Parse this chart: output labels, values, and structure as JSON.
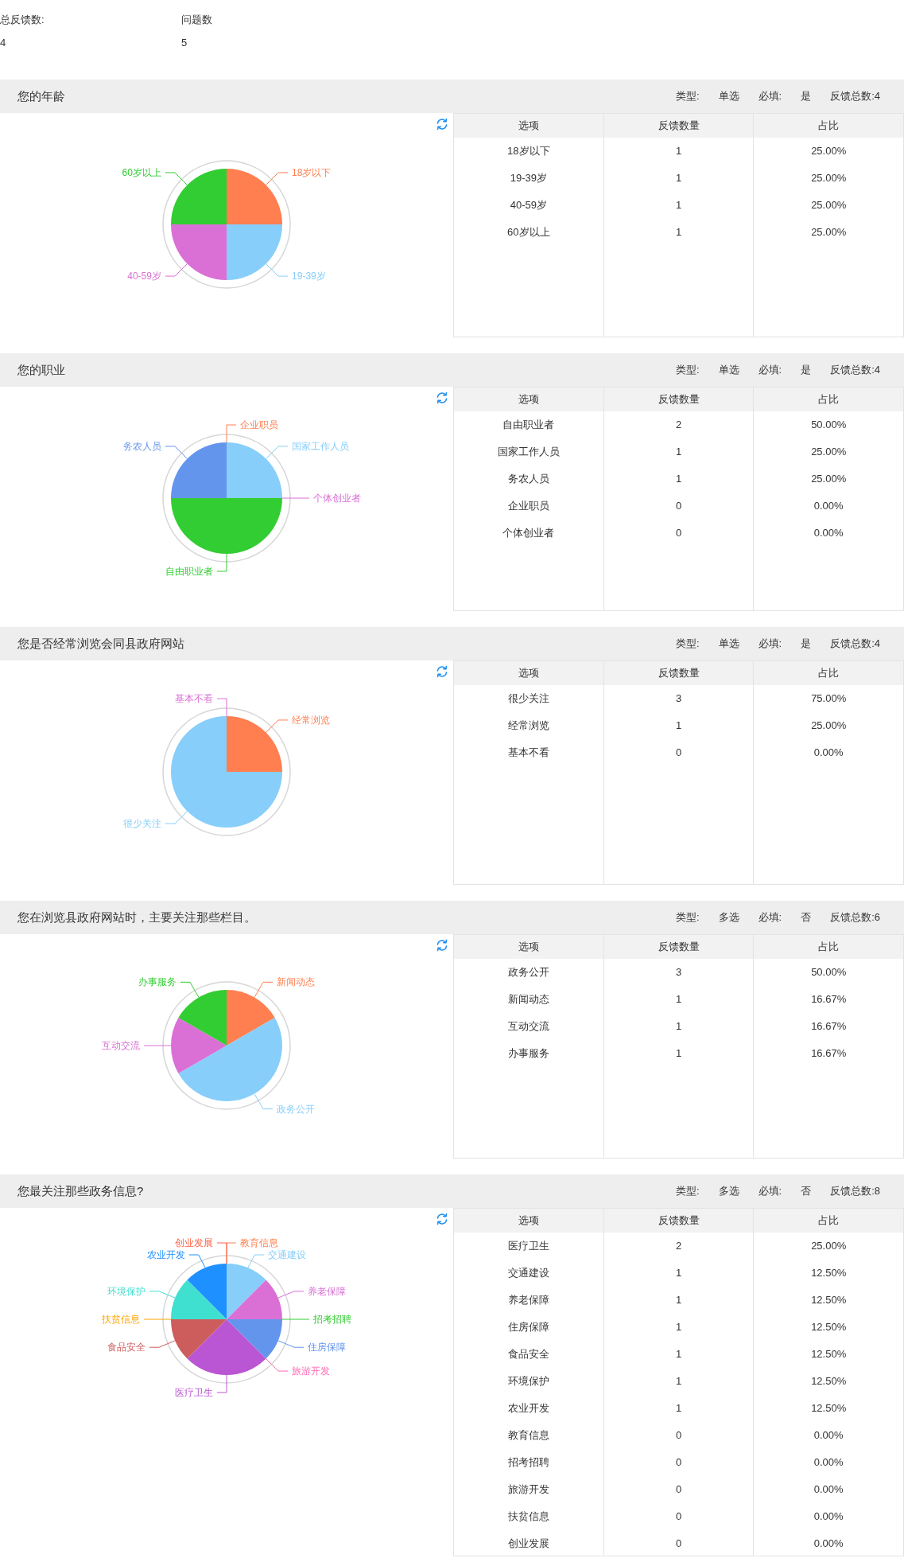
{
  "chart_data": [
    {
      "type": "pie",
      "title": "您的年龄",
      "categories": [
        "18岁以下",
        "19-39岁",
        "40-59岁",
        "60岁以上"
      ],
      "values": [
        25,
        25,
        25,
        25
      ],
      "colors": [
        "#ff7f50",
        "#87cefa",
        "#da70d6",
        "#32cd32"
      ],
      "annotations": [
        "总反馈数:",
        "4",
        "问题数",
        "5",
        "类型:",
        "单选",
        "必填:",
        "是",
        "反馈总数:4"
      ]
    },
    {
      "type": "other",
      "categories": [
        "18岁以下",
        "19-39岁",
        "40-59岁",
        "60岁以上"
      ],
      "series": [
        {
          "name": "反馈数量",
          "values": [
            1,
            1,
            1,
            1
          ]
        },
        {
          "name": "占比",
          "values": [
            25,
            25,
            25,
            25
          ],
          "value_labels": [
            "25.00%",
            "25.00%",
            "25.00%",
            "25.00%"
          ]
        }
      ],
      "data_labels": true,
      "annotations": [
        "选项"
      ]
    },
    {
      "type": "pie",
      "title": "您的职业",
      "categories": [
        "企业职员",
        "国家工作人员",
        "个体创业者",
        "自由职业者",
        "务农人员"
      ],
      "values": [
        0,
        25,
        0,
        50,
        25
      ],
      "colors": [
        "#ff7f50",
        "#87cefa",
        "#da70d6",
        "#32cd32",
        "#6495ed"
      ],
      "annotations": [
        "类型:",
        "单选",
        "必填:",
        "是",
        "反馈总数:4"
      ]
    },
    {
      "type": "other",
      "categories": [
        "自由职业者",
        "国家工作人员",
        "务农人员",
        "企业职员",
        "个体创业者"
      ],
      "series": [
        {
          "name": "反馈数量",
          "values": [
            2,
            1,
            1,
            0,
            0
          ]
        },
        {
          "name": "占比",
          "values": [
            50,
            25,
            25,
            0,
            0
          ],
          "value_labels": [
            "50.00%",
            "25.00%",
            "25.00%",
            "0.00%",
            "0.00%"
          ]
        }
      ],
      "data_labels": true,
      "annotations": [
        "选项"
      ]
    },
    {
      "type": "pie",
      "title": "您是否经常浏览会同县政府网站",
      "categories": [
        "经常浏览",
        "很少关注",
        "基本不看"
      ],
      "values": [
        25,
        75,
        0
      ],
      "colors": [
        "#ff7f50",
        "#87cefa",
        "#da70d6"
      ],
      "annotations": [
        "类型:",
        "单选",
        "必填:",
        "是",
        "反馈总数:4"
      ]
    },
    {
      "type": "other",
      "categories": [
        "很少关注",
        "经常浏览",
        "基本不看"
      ],
      "series": [
        {
          "name": "反馈数量",
          "values": [
            3,
            1,
            0
          ]
        },
        {
          "name": "占比",
          "values": [
            75,
            25,
            0
          ],
          "value_labels": [
            "75.00%",
            "25.00%",
            "0.00%"
          ]
        }
      ],
      "data_labels": true,
      "annotations": [
        "选项"
      ]
    },
    {
      "type": "pie",
      "title": "您在浏览县政府网站时，主要关注那些栏目。",
      "categories": [
        "新闻动态",
        "政务公开",
        "互动交流",
        "办事服务"
      ],
      "values": [
        16.67,
        50,
        16.67,
        16.67
      ],
      "colors": [
        "#ff7f50",
        "#87cefa",
        "#da70d6",
        "#32cd32"
      ],
      "annotations": [
        "类型:",
        "多选",
        "必填:",
        "否",
        "反馈总数:6"
      ]
    },
    {
      "type": "other",
      "categories": [
        "政务公开",
        "新闻动态",
        "互动交流",
        "办事服务"
      ],
      "series": [
        {
          "name": "反馈数量",
          "values": [
            3,
            1,
            1,
            1
          ]
        },
        {
          "name": "占比",
          "values": [
            50,
            16.67,
            16.67,
            16.67
          ],
          "value_labels": [
            "50.00%",
            "16.67%",
            "16.67%",
            "16.67%"
          ]
        }
      ],
      "data_labels": true,
      "annotations": [
        "选项"
      ]
    },
    {
      "type": "pie",
      "title": "您最关注那些政务信息?",
      "categories": [
        "教育信息",
        "交通建设",
        "养老保障",
        "招考招聘",
        "住房保障",
        "旅游开发",
        "医疗卫生",
        "食品安全",
        "扶贫信息",
        "环境保护",
        "农业开发",
        "创业发展"
      ],
      "values": [
        0,
        12.5,
        12.5,
        0,
        12.5,
        0,
        25,
        12.5,
        0,
        12.5,
        12.5,
        0
      ],
      "colors": [
        "#ff7f50",
        "#87cefa",
        "#da70d6",
        "#32cd32",
        "#6495ed",
        "#ff69b4",
        "#ba55d3",
        "#cd5c5c",
        "#ffa500",
        "#40e0d0",
        "#1e90ff",
        "#ff6347"
      ],
      "annotations": [
        "类型:",
        "多选",
        "必填:",
        "否",
        "反馈总数:8"
      ]
    },
    {
      "type": "other",
      "categories": [
        "医疗卫生",
        "交通建设",
        "养老保障",
        "住房保障",
        "食品安全",
        "环境保护",
        "农业开发",
        "教育信息",
        "招考招聘",
        "旅游开发",
        "扶贫信息",
        "创业发展"
      ],
      "series": [
        {
          "name": "反馈数量",
          "values": [
            2,
            1,
            1,
            1,
            1,
            1,
            1,
            0,
            0,
            0,
            0,
            0
          ]
        },
        {
          "name": "占比",
          "values": [
            25,
            12.5,
            12.5,
            12.5,
            12.5,
            12.5,
            12.5,
            0,
            0,
            0,
            0,
            0
          ],
          "value_labels": [
            "25.00%",
            "12.50%",
            "12.50%",
            "12.50%",
            "12.50%",
            "12.50%",
            "12.50%",
            "0.00%",
            "0.00%",
            "0.00%",
            "0.00%",
            "0.00%"
          ]
        }
      ],
      "data_labels": true,
      "annotations": [
        "选项"
      ]
    }
  ]
}
